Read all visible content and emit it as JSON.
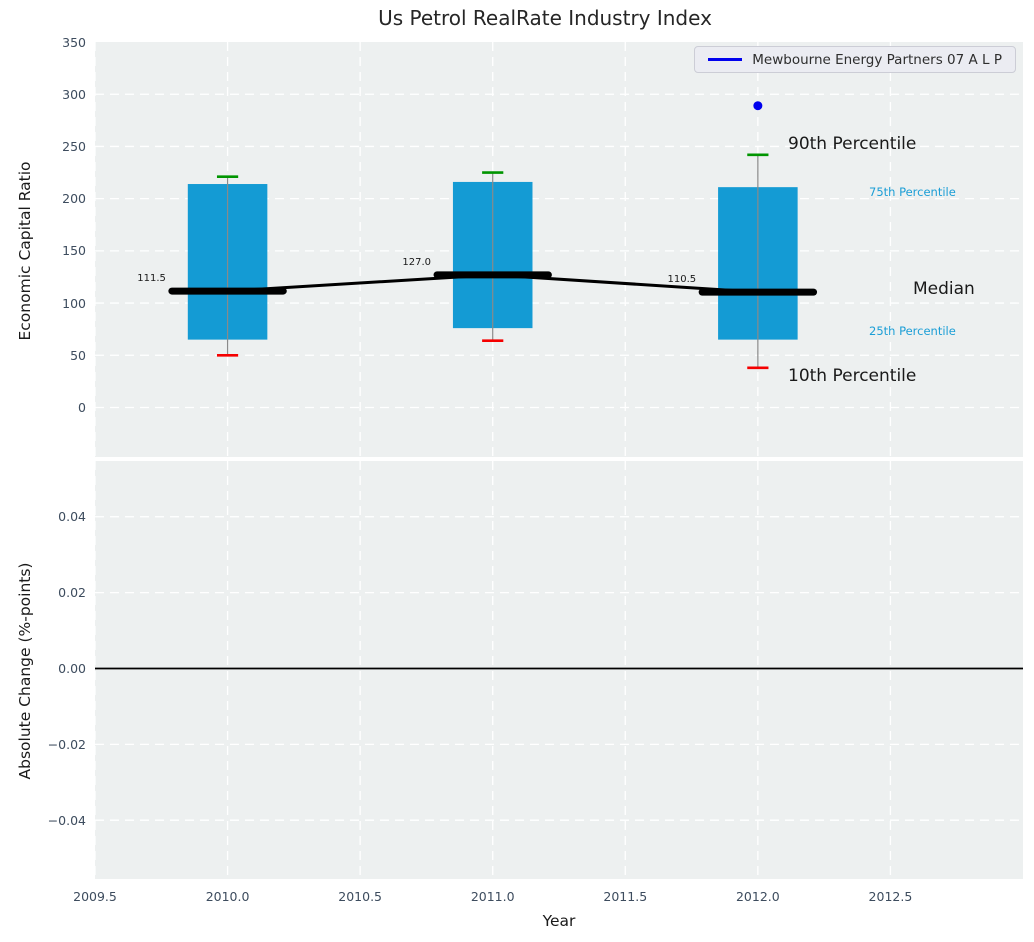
{
  "chart_data": {
    "type": "box",
    "title": "Us Petrol RealRate Industry Index",
    "xlabel": "Year",
    "xlim": [
      2009.5,
      2013.0
    ],
    "xticks": {
      "values": [
        2009.5,
        2010.0,
        2010.5,
        2011.0,
        2011.5,
        2012.0,
        2012.5
      ],
      "labels": [
        "2009.5",
        "2010.0",
        "2010.5",
        "2011.0",
        "2011.5",
        "2012.0",
        "2012.5"
      ]
    },
    "legend": {
      "series_label": "Mewbourne Energy Partners 07 A L P",
      "position": "upper right"
    },
    "grid": true,
    "top_panel": {
      "ylabel": "Economic Capital Ratio",
      "ylim": [
        -47.4,
        350
      ],
      "yticks": {
        "values": [
          0,
          50,
          100,
          150,
          200,
          250,
          300,
          350
        ],
        "labels": [
          "0",
          "50",
          "100",
          "150",
          "200",
          "250",
          "300",
          "350"
        ]
      },
      "box_width_years": 0.3,
      "median_bar_width_years": 0.42,
      "cap_width_years": 0.08,
      "boxes": [
        {
          "year": 2010,
          "median_label": "111.5",
          "p10": 50,
          "p25": 65,
          "median": 111.5,
          "p75": 214,
          "p90": 221
        },
        {
          "year": 2011,
          "median_label": "127.0",
          "p10": 64,
          "p25": 76,
          "median": 127.0,
          "p75": 216,
          "p90": 225
        },
        {
          "year": 2012,
          "median_label": "110.5",
          "p10": 38,
          "p25": 65,
          "median": 110.5,
          "p75": 211,
          "p90": 242
        }
      ],
      "company_point": {
        "year": 2012,
        "value": 289
      },
      "percentile_labels": {
        "p90": "90th Percentile",
        "p75": "75th Percentile",
        "median": "Median",
        "p25": "25th Percentile",
        "p10": "10th Percentile"
      }
    },
    "bottom_panel": {
      "ylabel": "Absolute Change (%-points)",
      "ylim": [
        -0.0555,
        0.0547
      ],
      "yticks": {
        "values": [
          0.04,
          0.02,
          0.0,
          -0.02,
          -0.04
        ],
        "labels": [
          "0.04",
          "0.02",
          "0.00",
          "−0.02",
          "−0.04"
        ]
      },
      "zero_line_value": 0.0
    },
    "colors": {
      "plot_background": "#edf0f0",
      "gridline": "#ffffff",
      "box_fill": "#149bd4",
      "whisker": "#8a8a8a",
      "cap_high_green": "#009500",
      "cap_low_red": "#f50000",
      "median_black": "#000000",
      "series_blue": "#0000ee",
      "tick_text": "#3d4c5e",
      "percentile_text_cyan": "#1b9ed6",
      "zero_line": "#000000"
    }
  }
}
